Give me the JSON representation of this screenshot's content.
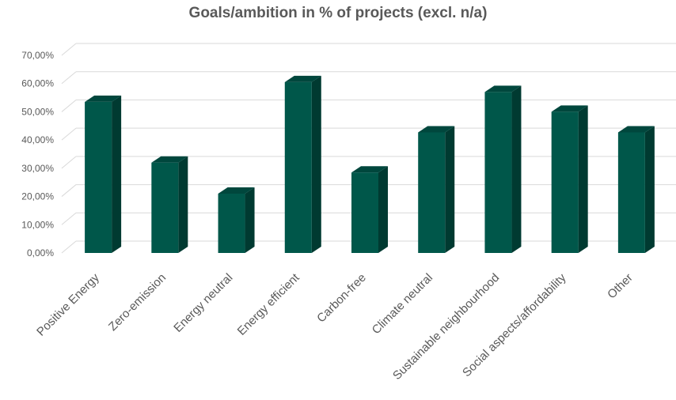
{
  "chart_data": {
    "type": "bar",
    "title": "Goals/ambition in % of projects (excl. n/a)",
    "categories": [
      "Positive Energy",
      "Zero-emission",
      "Energy neutral",
      "Energy efficient",
      "Carbon-free",
      "Climate neutral",
      "Sustainable neighbourhood",
      "Social aspects/affordability",
      "Other"
    ],
    "values": [
      53.5,
      32.0,
      21.0,
      60.5,
      28.5,
      42.7,
      57.0,
      50.0,
      42.7
    ],
    "ylim": [
      0,
      70
    ],
    "yticks": [
      "0,00%",
      "10,00%",
      "20,00%",
      "30,00%",
      "40,00%",
      "50,00%",
      "60,00%",
      "70,00%"
    ],
    "grid": true,
    "legend": "none",
    "colors": {
      "bar_front": "#00574a",
      "bar_side": "#003a31",
      "bar_top": "#00473d",
      "grid": "#d9d9d9",
      "text": "#595959"
    }
  }
}
